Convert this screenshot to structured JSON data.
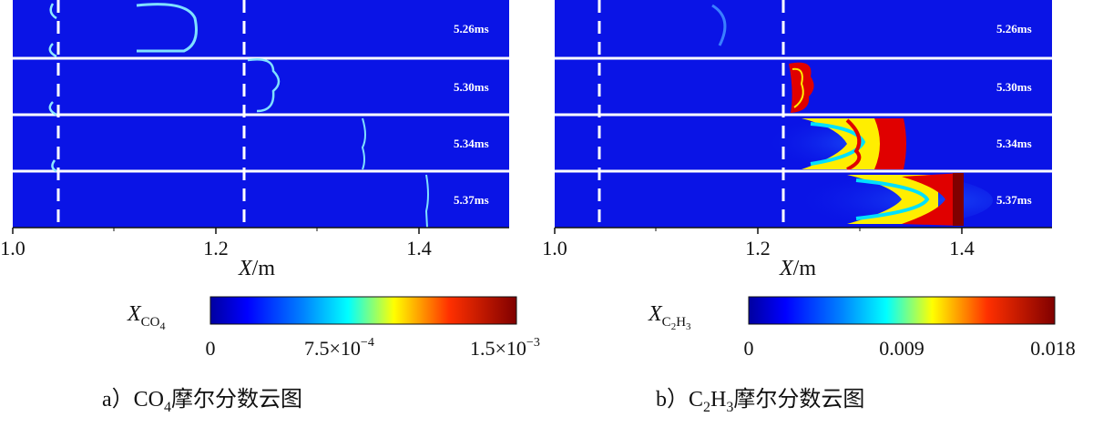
{
  "panels": [
    {
      "id": "a",
      "times": [
        "5.26ms",
        "5.30ms",
        "5.34ms",
        "5.37ms"
      ],
      "x_ticks": [
        "1.0",
        "1.2",
        "1.4"
      ],
      "x_label_var": "X",
      "x_label_unit": "/m",
      "cbar_var": "X",
      "cbar_sub": "CO",
      "cbar_sub2": "4",
      "cbar_ticks": [
        "0"
      ],
      "cbar_mid_mant": "7.5×10",
      "cbar_mid_exp": "−4",
      "cbar_max_mant": "1.5×10",
      "cbar_max_exp": "−3",
      "caption_prefix": "a）",
      "caption_species": "CO",
      "caption_sub": "4",
      "caption_rest": "摩尔分数云图"
    },
    {
      "id": "b",
      "times": [
        "5.26ms",
        "5.30ms",
        "5.34ms",
        "5.37ms"
      ],
      "x_ticks": [
        "1.0",
        "1.2",
        "1.4"
      ],
      "x_label_var": "X",
      "x_label_unit": "/m",
      "cbar_var": "X",
      "cbar_sub": "C",
      "cbar_sub_n1": "2",
      "cbar_sub_h": "H",
      "cbar_sub_n2": "3",
      "cbar_ticks": [
        "0",
        "0.009",
        "0.018"
      ],
      "caption_prefix": "b）",
      "caption_species_c": "C",
      "caption_sub1": "2",
      "caption_species_h": "H",
      "caption_sub2": "3",
      "caption_rest": "摩尔分数云图"
    }
  ],
  "colors": {
    "field_bg": "#0a14e6",
    "divider": "#ffffff",
    "front_light": "#7fe0ff",
    "red": "#e00000",
    "yellow": "#ffee00",
    "cyan": "#00e0ff"
  }
}
